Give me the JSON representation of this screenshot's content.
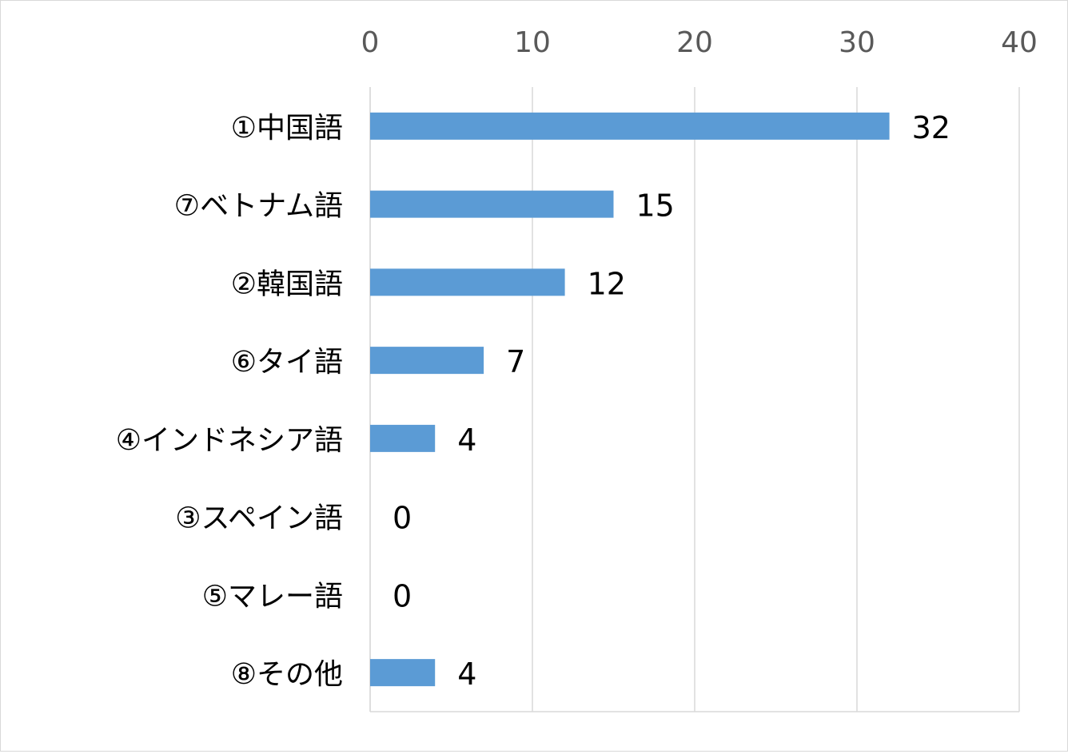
{
  "chart_data": {
    "type": "bar",
    "orientation": "horizontal",
    "categories": [
      "①中国語",
      "⑦ベトナム語",
      "②韓国語",
      "⑥タイ語",
      "④インドネシア語",
      "③スペイン語",
      "⑤マレー語",
      "⑧その他"
    ],
    "values": [
      32,
      15,
      12,
      7,
      4,
      0,
      0,
      4
    ],
    "value_labels": [
      "32",
      "15",
      "12",
      "7",
      "4",
      "0",
      "0",
      "4"
    ],
    "x_ticks": [
      "0",
      "10",
      "20",
      "30",
      "40"
    ],
    "xlim": [
      0,
      40
    ],
    "x_axis_position": "top",
    "grid": true,
    "legend": "none",
    "bar_color": "#5b9bd5",
    "grid_color": "#d9d9d9"
  }
}
